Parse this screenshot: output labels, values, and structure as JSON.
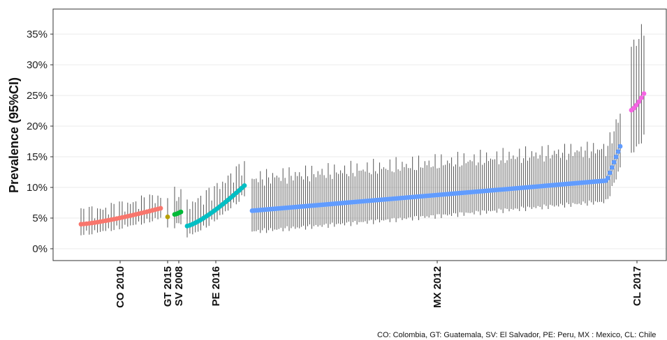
{
  "chart_data": {
    "type": "scatter",
    "ylabel": "Prevalence (95%CI)",
    "ylim": [
      0,
      37
    ],
    "yticks": [
      0,
      5,
      10,
      15,
      20,
      25,
      30,
      35
    ],
    "ytick_labels": [
      "0%",
      "5%",
      "10%",
      "15%",
      "20%",
      "25%",
      "30%",
      "35%"
    ],
    "grid": "horizontal",
    "xtick_labels": [
      "CO 2010",
      "GT 2015",
      "SV 2008",
      "PE 2016",
      "MX 2012",
      "CL 2017"
    ],
    "caption": "CO: Colombia, GT: Guatemala, SV: El Salvador, PE: Peru, MX : Mexico, CL: Chile",
    "series": [
      {
        "code": "CO",
        "color": "#F8766D",
        "count": 30,
        "start": 4.0,
        "end": 6.6,
        "ci_lo_width": 1.6,
        "ci_hi_width": 1.9
      },
      {
        "code": "GT",
        "color": "#B79F00",
        "count": 1,
        "start": 5.2,
        "end": 5.2,
        "ci_lo_width": 1.3,
        "ci_hi_width": 1.6
      },
      {
        "code": "SV",
        "color": "#00BA38",
        "count": 4,
        "start": 5.6,
        "end": 6.0,
        "ci_lo_width": 1.8,
        "ci_hi_width": 3.0
      },
      {
        "code": "PE",
        "color": "#00BFC4",
        "count": 22,
        "start": 3.7,
        "end": 10.3,
        "ci_lo_width": 1.6,
        "ci_hi_width": 3.5
      },
      {
        "code": "MX",
        "color": "#619CFF",
        "count": 180,
        "start": 6.2,
        "end": 16.7,
        "ci_lo_width": 3.4,
        "ci_hi_width": 5.2
      },
      {
        "code": "CL",
        "color": "#F564E3",
        "count": 6,
        "start": 22.6,
        "end": 25.3,
        "ci_lo_width": 7.0,
        "ci_hi_width": 10.5
      }
    ]
  }
}
